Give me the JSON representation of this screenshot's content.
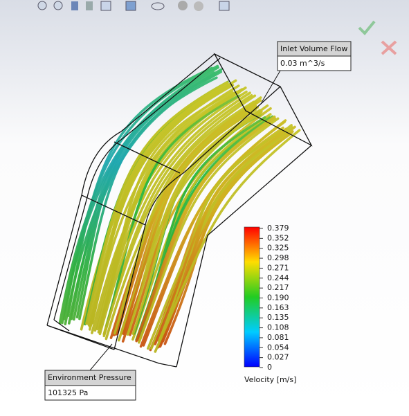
{
  "callouts": [
    {
      "title": "Inlet Volume Flow",
      "value": "0.03 m^3/s"
    },
    {
      "title": "Environment Pressure",
      "value": "101325 Pa"
    }
  ],
  "legend": {
    "labels": [
      "0.379",
      "0.352",
      "0.325",
      "0.298",
      "0.271",
      "0.244",
      "0.217",
      "0.190",
      "0.163",
      "0.135",
      "0.108",
      "0.081",
      "0.054",
      "0.027",
      "0"
    ],
    "title": "Velocity [m/s]"
  }
}
